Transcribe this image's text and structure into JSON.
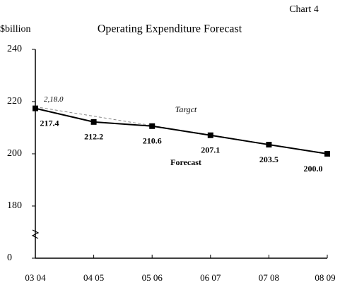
{
  "chart_data": {
    "type": "line",
    "title": "Operating Expenditure Forecast",
    "chart_label": "Chart 4",
    "y_unit": "$billion",
    "categories": [
      "03 04",
      "04 05",
      "05 06",
      "06 07",
      "07 08",
      "08 09"
    ],
    "ylim": [
      0,
      240
    ],
    "y_break": [
      0,
      160
    ],
    "yticks": [
      0,
      180,
      200,
      220,
      240
    ],
    "series": [
      {
        "name": "Forecast",
        "color": "#000000",
        "style": "solid",
        "markers": true,
        "values": [
          217.4,
          212.2,
          210.6,
          207.1,
          203.5,
          200.0
        ],
        "value_labels": [
          "217.4",
          "212.2",
          "210.6",
          "207.1",
          "203.5",
          "200.0"
        ]
      },
      {
        "name": "Targct",
        "color": "#888888",
        "style": "dashed",
        "markers": false,
        "values": [
          218.0,
          214.4,
          210.8,
          207.2,
          203.6,
          200.0
        ],
        "value_labels": [
          "2,18.0",
          null,
          null,
          null,
          null,
          null
        ]
      }
    ]
  }
}
